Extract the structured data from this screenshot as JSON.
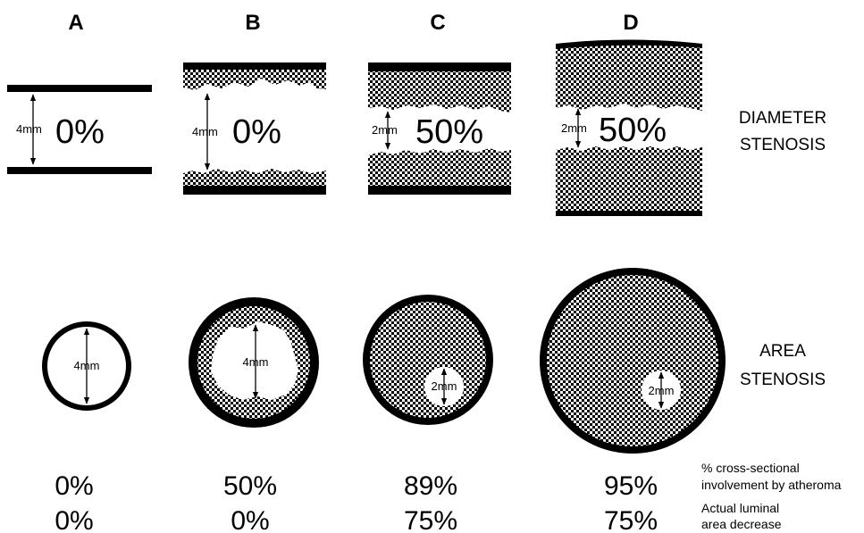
{
  "columns": [
    {
      "letter": "A",
      "diameter_label": "0%",
      "diameter_dim": "4mm",
      "area_dim": "4mm",
      "involvement": "0%",
      "luminal_decrease": "0%"
    },
    {
      "letter": "B",
      "diameter_label": "0%",
      "diameter_dim": "4mm",
      "area_dim": "4mm",
      "involvement": "50%",
      "luminal_decrease": "0%"
    },
    {
      "letter": "C",
      "diameter_label": "50%",
      "diameter_dim": "2mm",
      "area_dim": "2mm",
      "involvement": "89%",
      "luminal_decrease": "75%"
    },
    {
      "letter": "D",
      "diameter_label": "50%",
      "diameter_dim": "2mm",
      "area_dim": "2mm",
      "involvement": "95%",
      "luminal_decrease": "75%"
    }
  ],
  "row_labels": {
    "diameter": [
      "DIAMETER",
      "STENOSIS"
    ],
    "area": [
      "AREA",
      "STENOSIS"
    ]
  },
  "legend": {
    "involvement": [
      "% cross-sectional",
      "involvement by atheroma"
    ],
    "luminal": [
      "Actual luminal",
      "area decrease"
    ]
  },
  "colors": {
    "ink": "#000000",
    "paper": "#ffffff"
  }
}
